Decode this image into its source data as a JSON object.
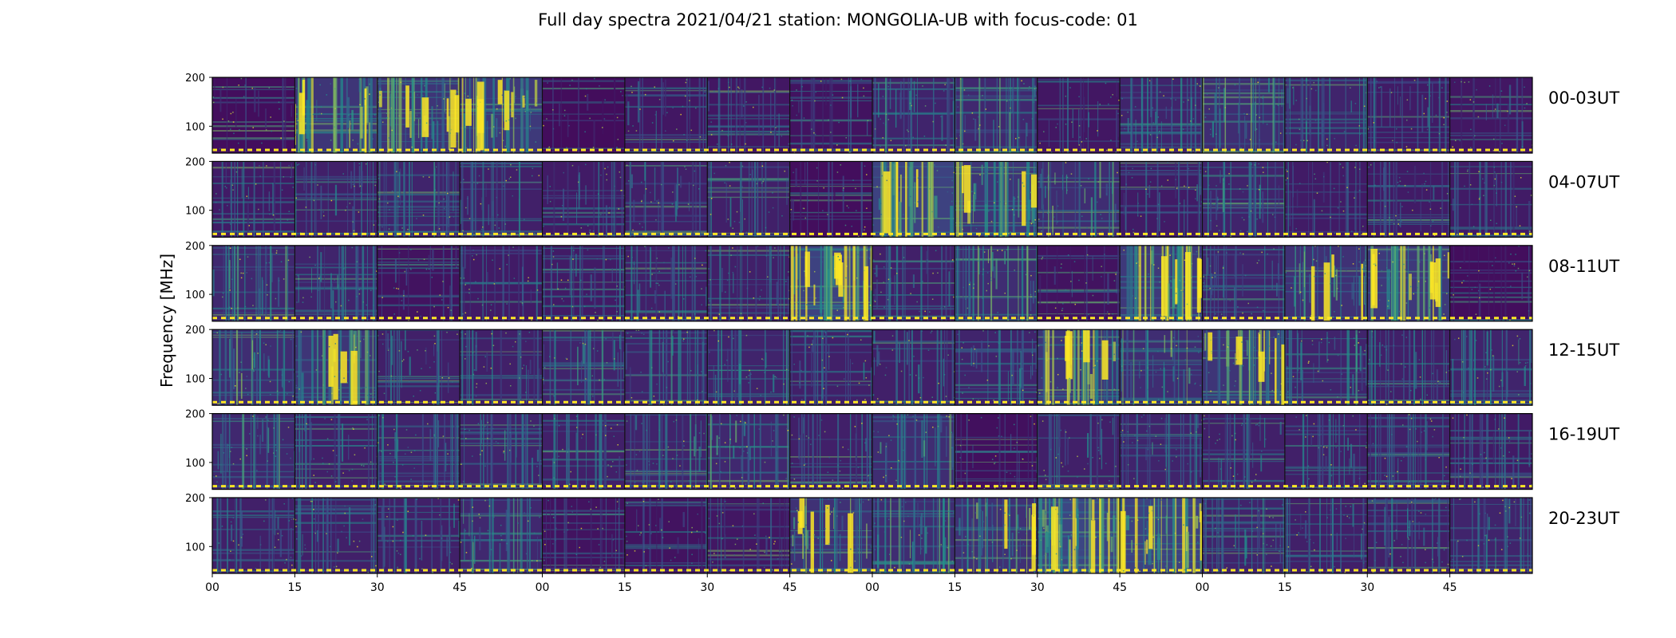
{
  "colors": {
    "viridis_low": "#440154",
    "viridis_mid": "#21918c",
    "viridis_high": "#fde725",
    "baseline_dash": "#fde725",
    "frame": "#000000"
  },
  "chart_data": {
    "type": "heatmap",
    "title": "Full day spectra 2021/04/21 station: MONGOLIA-UB with focus-code: 01",
    "ylabel": "Frequency [MHz]",
    "xlabel": "",
    "colormap": "viridis",
    "ylim": [
      45,
      200
    ],
    "yticks": [
      100,
      200
    ],
    "yticks_label": [
      "100",
      "200"
    ],
    "xtick_labels": [
      "00",
      "15",
      "30",
      "45",
      "00",
      "15",
      "30",
      "45",
      "00",
      "15",
      "30",
      "45",
      "00",
      "15",
      "30",
      "45"
    ],
    "minutes_per_block": 15,
    "blocks_per_panel": 16,
    "grid": false,
    "panels": [
      {
        "label": "00-03UT",
        "block_intensity": [
          0.1,
          0.55,
          0.55,
          0.6,
          0.08,
          0.2,
          0.2,
          0.15,
          0.35,
          0.4,
          0.2,
          0.35,
          0.45,
          0.35,
          0.25,
          0.2
        ]
      },
      {
        "label": "04-07UT",
        "block_intensity": [
          0.25,
          0.3,
          0.35,
          0.3,
          0.25,
          0.3,
          0.3,
          0.1,
          0.7,
          0.55,
          0.45,
          0.25,
          0.35,
          0.25,
          0.25,
          0.25
        ]
      },
      {
        "label": "08-11UT",
        "block_intensity": [
          0.4,
          0.35,
          0.15,
          0.25,
          0.25,
          0.3,
          0.3,
          0.7,
          0.3,
          0.45,
          0.15,
          0.6,
          0.35,
          0.5,
          0.6,
          0.1
        ]
      },
      {
        "label": "12-15UT",
        "block_intensity": [
          0.45,
          0.55,
          0.3,
          0.3,
          0.35,
          0.35,
          0.35,
          0.3,
          0.3,
          0.35,
          0.55,
          0.45,
          0.55,
          0.35,
          0.3,
          0.35
        ]
      },
      {
        "label": "16-19UT",
        "block_intensity": [
          0.4,
          0.3,
          0.35,
          0.35,
          0.3,
          0.35,
          0.4,
          0.3,
          0.45,
          0.12,
          0.3,
          0.35,
          0.3,
          0.3,
          0.3,
          0.25
        ]
      },
      {
        "label": "20-23UT",
        "block_intensity": [
          0.3,
          0.3,
          0.3,
          0.4,
          0.15,
          0.15,
          0.2,
          0.5,
          0.45,
          0.5,
          0.75,
          0.7,
          0.35,
          0.3,
          0.3,
          0.35
        ]
      }
    ]
  }
}
